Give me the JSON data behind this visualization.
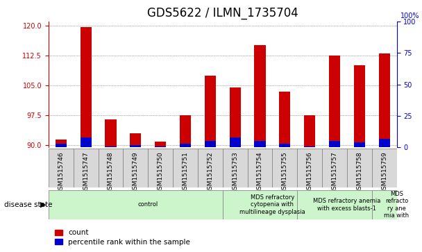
{
  "title": "GDS5622 / ILMN_1735704",
  "samples": [
    "GSM1515746",
    "GSM1515747",
    "GSM1515748",
    "GSM1515749",
    "GSM1515750",
    "GSM1515751",
    "GSM1515752",
    "GSM1515753",
    "GSM1515754",
    "GSM1515755",
    "GSM1515756",
    "GSM1515757",
    "GSM1515758",
    "GSM1515759"
  ],
  "counts": [
    91.5,
    119.5,
    96.5,
    93.0,
    91.0,
    97.5,
    107.5,
    104.5,
    115.0,
    103.5,
    97.5,
    112.5,
    110.0,
    113.0
  ],
  "percentiles": [
    3,
    8,
    1,
    2,
    1,
    3,
    5,
    8,
    5,
    3,
    1,
    5,
    4,
    7
  ],
  "y_min": 89.5,
  "y_max": 121.0,
  "y_ticks_left": [
    90,
    97.5,
    105,
    112.5,
    120
  ],
  "y_ticks_right": [
    0,
    25,
    50,
    75,
    100
  ],
  "bar_color_count": "#cc0000",
  "bar_color_pct": "#0000cc",
  "bar_width": 0.45,
  "disease_states": [
    {
      "label": "control",
      "start": 0,
      "end": 7
    },
    {
      "label": "MDS refractory\ncytopenia with\nmultilineage dysplasia",
      "start": 7,
      "end": 10
    },
    {
      "label": "MDS refractory anemia\nwith excess blasts-1",
      "start": 10,
      "end": 13
    },
    {
      "label": "MDS\nrefracto\nry ane\nmia with",
      "start": 13,
      "end": 14
    }
  ],
  "disease_state_label": "disease state",
  "legend_count": "count",
  "legend_pct": "percentile rank within the sample",
  "bg_color": "#ffffff",
  "plot_bg": "#ffffff",
  "grid_color": "#555555",
  "title_fontsize": 12,
  "tick_fontsize": 7,
  "ds_color": "#ccf5cc",
  "sample_box_color": "#d8d8d8",
  "right_axis_100pct": "100%"
}
